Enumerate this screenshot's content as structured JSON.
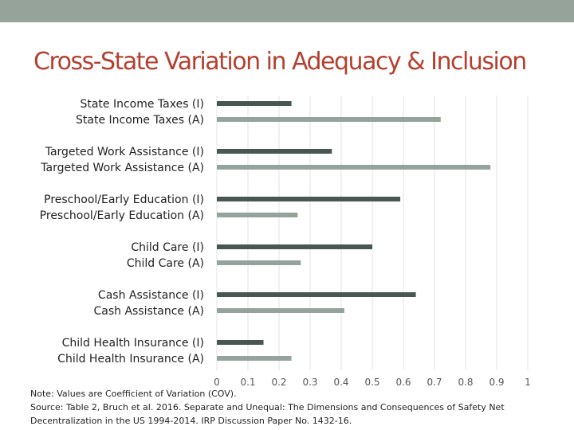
{
  "colors": {
    "band": "#95a39a",
    "title": "#b5402f",
    "series_i": "#4a5650",
    "series_a": "#95a39a",
    "grid": "#e3e3e3"
  },
  "chart_data": {
    "type": "bar",
    "orientation": "horizontal",
    "title": "Cross-State Variation in Adequacy & Inclusion",
    "xlim": [
      0,
      1
    ],
    "xticks": [
      0,
      0.1,
      0.2,
      0.3,
      0.4,
      0.5,
      0.6,
      0.7,
      0.8,
      0.9,
      1
    ],
    "xtick_labels": [
      "0",
      "0.1",
      "0.2",
      "0.3",
      "0.4",
      "0.5",
      "0.6",
      "0.7",
      "0.8",
      "0.9",
      "1"
    ],
    "grid": true,
    "categories": [
      {
        "label_i": "State Income Taxes (I)",
        "value_i": 0.24,
        "label_a": "State Income Taxes (A)",
        "value_a": 0.72
      },
      {
        "label_i": "Targeted Work Assistance (I)",
        "value_i": 0.37,
        "label_a": "Targeted Work Assistance (A)",
        "value_a": 0.88
      },
      {
        "label_i": "Preschool/Early Education (I)",
        "value_i": 0.59,
        "label_a": "Preschool/Early Education (A)",
        "value_a": 0.26
      },
      {
        "label_i": "Child Care (I)",
        "value_i": 0.5,
        "label_a": "Child Care (A)",
        "value_a": 0.27
      },
      {
        "label_i": "Cash Assistance (I)",
        "value_i": 0.64,
        "label_a": "Cash Assistance (A)",
        "value_a": 0.41
      },
      {
        "label_i": "Child Health Insurance (I)",
        "value_i": 0.15,
        "label_a": "Child Health Insurance (A)",
        "value_a": 0.24
      }
    ]
  },
  "notes": {
    "line1": "Note: Values are Coefficient of Variation (COV).",
    "line2": "Source: Table 2, Bruch et al. 2016. Separate and Unequal: The Dimensions and Consequences of Safety Net",
    "line3": "Decentralization in the US 1994-2014. IRP Discussion Paper No. 1432-16."
  }
}
